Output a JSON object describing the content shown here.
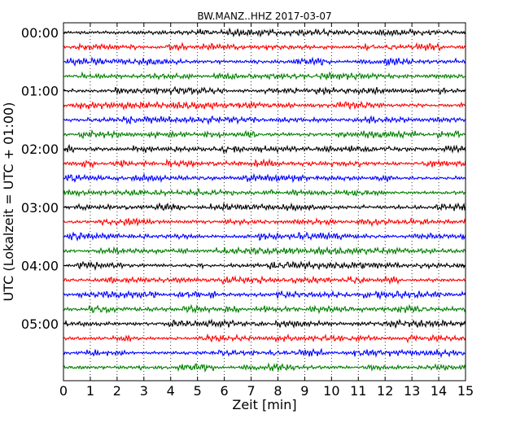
{
  "chart_data": {
    "type": "line",
    "title": "BW.MANZ..HHZ 2017-03-07",
    "xlabel": "Zeit  [min]",
    "ylabel": "UTC (Lokalzeit = UTC + 01:00)",
    "xlim": [
      0,
      15
    ],
    "x_ticks": [
      "0",
      "1",
      "2",
      "3",
      "4",
      "5",
      "6",
      "7",
      "8",
      "9",
      "10",
      "11",
      "12",
      "13",
      "14",
      "15"
    ],
    "y_tick_labels": [
      "00:00",
      "01:00",
      "02:00",
      "03:00",
      "04:00",
      "05:00"
    ],
    "traces_per_hour": 4,
    "trace_count": 24,
    "trace_minutes": 15,
    "color_cycle": [
      "#000000",
      "#ff0000",
      "#0000ff",
      "#007f00"
    ],
    "grid": "vertical-dotted",
    "series": [
      {
        "start": "00:00",
        "color": "#000000"
      },
      {
        "start": "00:15",
        "color": "#ff0000"
      },
      {
        "start": "00:30",
        "color": "#0000ff"
      },
      {
        "start": "00:45",
        "color": "#007f00"
      },
      {
        "start": "01:00",
        "color": "#000000"
      },
      {
        "start": "01:15",
        "color": "#ff0000"
      },
      {
        "start": "01:30",
        "color": "#0000ff"
      },
      {
        "start": "01:45",
        "color": "#007f00"
      },
      {
        "start": "02:00",
        "color": "#000000"
      },
      {
        "start": "02:15",
        "color": "#ff0000"
      },
      {
        "start": "02:30",
        "color": "#0000ff"
      },
      {
        "start": "02:45",
        "color": "#007f00"
      },
      {
        "start": "03:00",
        "color": "#000000"
      },
      {
        "start": "03:15",
        "color": "#ff0000"
      },
      {
        "start": "03:30",
        "color": "#0000ff"
      },
      {
        "start": "03:45",
        "color": "#007f00"
      },
      {
        "start": "04:00",
        "color": "#000000"
      },
      {
        "start": "04:15",
        "color": "#ff0000"
      },
      {
        "start": "04:30",
        "color": "#0000ff"
      },
      {
        "start": "04:45",
        "color": "#007f00"
      },
      {
        "start": "05:00",
        "color": "#000000"
      },
      {
        "start": "05:15",
        "color": "#ff0000"
      },
      {
        "start": "05:30",
        "color": "#0000ff"
      },
      {
        "start": "05:45",
        "color": "#007f00"
      }
    ]
  }
}
